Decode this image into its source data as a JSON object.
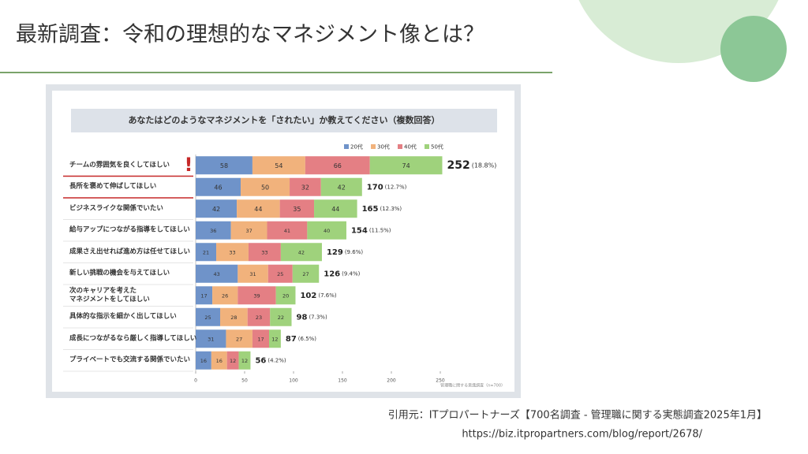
{
  "slide": {
    "title": "最新調査：令和の理想的なマネジメント像とは？",
    "citation": "引用元：ITプロパートナーズ【700名調査 - 管理職に関する実態調査2025年1月】",
    "url": "https://biz.itpropartners.com/blog/report/2678/"
  },
  "chart_data": {
    "type": "stacked_barh",
    "title": "あなたはどのようなマネジメントを「されたい」か教えてください（複数回答）",
    "note": "管理職に関する意識調査（n=700）",
    "categories": [
      "チームの雰囲気を良くしてほしい",
      "長所を褒めて伸ばしてほしい",
      "ビジネスライクな関係でいたい",
      "給与アップにつながる指導をしてほしい",
      "成果さえ出せれば進め方は任せてほしい",
      "新しい挑戦の機会を与えてほしい",
      "次のキャリアを考えた\nマネジメントをしてほしい",
      "具体的な指示を細かく出してほしい",
      "成長につながるなら厳しく指導してほしい",
      "プライベートでも交流する関係でいたい"
    ],
    "series": [
      {
        "name": "20代",
        "color": "#6f93c9",
        "values": [
          58,
          46,
          42,
          36,
          21,
          43,
          17,
          25,
          31,
          16
        ]
      },
      {
        "name": "30代",
        "color": "#f1b27c",
        "values": [
          54,
          50,
          44,
          37,
          33,
          31,
          26,
          28,
          27,
          16
        ]
      },
      {
        "name": "40代",
        "color": "#e47f84",
        "values": [
          66,
          32,
          35,
          41,
          33,
          25,
          39,
          23,
          17,
          12
        ]
      },
      {
        "name": "50代",
        "color": "#9fd27c",
        "values": [
          74,
          42,
          44,
          40,
          42,
          27,
          20,
          22,
          12,
          12
        ]
      }
    ],
    "totals": [
      252,
      170,
      165,
      154,
      129,
      126,
      102,
      98,
      87,
      56
    ],
    "share_labels": [
      "(18.8%)",
      "(12.7%)",
      "(12.3%)",
      "(11.5%)",
      "(9.6%)",
      "(9.4%)",
      "(7.6%)",
      "(7.3%)",
      "(6.5%)",
      "(4.2%)"
    ],
    "xlim": [
      0,
      250
    ],
    "xticks": [
      0,
      50,
      100,
      150,
      200,
      250
    ],
    "legend": "top-right"
  }
}
